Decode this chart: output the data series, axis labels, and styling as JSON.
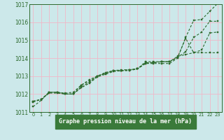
{
  "title": "Graphe pression niveau de la mer (hPa)",
  "xlabel_hours": [
    0,
    1,
    2,
    3,
    4,
    5,
    6,
    7,
    8,
    9,
    10,
    11,
    12,
    13,
    14,
    15,
    16,
    17,
    18,
    19,
    20,
    21,
    22,
    23
  ],
  "ylim": [
    1011,
    1017
  ],
  "xlim": [
    0,
    23
  ],
  "yticks": [
    1011,
    1012,
    1013,
    1014,
    1015,
    1016,
    1017
  ],
  "background_color": "#cce8ea",
  "grid_color": "#f0b8c8",
  "line_color": "#2d6a2d",
  "label_bg": "#3a7a3a",
  "label_fg": "#ffffff",
  "series": [
    [
      1011.3,
      1011.65,
      1012.1,
      1012.1,
      1012.0,
      1012.0,
      1012.5,
      1012.8,
      1013.0,
      1013.2,
      1013.3,
      1013.3,
      1013.3,
      1013.4,
      1013.7,
      1013.7,
      1013.7,
      1013.7,
      1014.0,
      1015.15,
      1016.1,
      1016.15,
      1016.6,
      1017.05
    ],
    [
      1011.55,
      1011.7,
      1012.05,
      1012.05,
      1012.0,
      1012.0,
      1012.35,
      1012.6,
      1012.95,
      1013.1,
      1013.25,
      1013.3,
      1013.35,
      1013.4,
      1013.7,
      1013.75,
      1013.8,
      1013.8,
      1014.05,
      1014.35,
      1015.15,
      1015.45,
      1016.05,
      1016.05
    ],
    [
      1011.6,
      1011.7,
      1012.1,
      1012.1,
      1012.05,
      1012.1,
      1012.5,
      1012.7,
      1013.0,
      1013.15,
      1013.3,
      1013.3,
      1013.35,
      1013.4,
      1013.75,
      1013.75,
      1013.8,
      1013.8,
      1014.05,
      1015.1,
      1014.3,
      1014.45,
      1015.4,
      1015.45
    ],
    [
      1011.6,
      1011.7,
      1012.1,
      1012.1,
      1012.0,
      1012.0,
      1012.4,
      1012.65,
      1013.0,
      1013.15,
      1013.3,
      1013.35,
      1013.35,
      1013.4,
      1013.8,
      1013.8,
      1013.8,
      1013.8,
      1014.1,
      1014.2,
      1014.3,
      1014.3,
      1014.3,
      1014.3
    ]
  ]
}
